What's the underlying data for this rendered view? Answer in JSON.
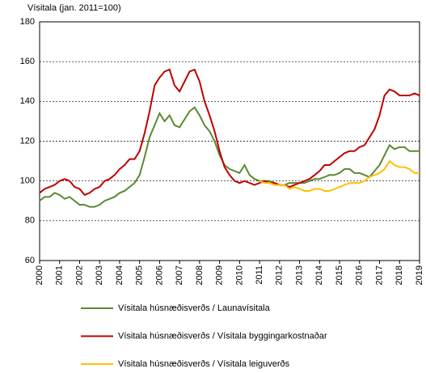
{
  "chart_data": {
    "type": "line",
    "y_label": "Vísitala (jan. 2011=100)",
    "x": [
      2000,
      2000.25,
      2000.5,
      2000.75,
      2001,
      2001.25,
      2001.5,
      2001.75,
      2002,
      2002.25,
      2002.5,
      2002.75,
      2003,
      2003.25,
      2003.5,
      2003.75,
      2004,
      2004.25,
      2004.5,
      2004.75,
      2005,
      2005.25,
      2005.5,
      2005.75,
      2006,
      2006.25,
      2006.5,
      2006.75,
      2007,
      2007.25,
      2007.5,
      2007.75,
      2008,
      2008.25,
      2008.5,
      2008.75,
      2009,
      2009.25,
      2009.5,
      2009.75,
      2010,
      2010.25,
      2010.5,
      2010.75,
      2011,
      2011.25,
      2011.5,
      2011.75,
      2012,
      2012.25,
      2012.5,
      2012.75,
      2013,
      2013.25,
      2013.5,
      2013.75,
      2014,
      2014.25,
      2014.5,
      2014.75,
      2015,
      2015.25,
      2015.5,
      2015.75,
      2016,
      2016.25,
      2016.5,
      2016.75,
      2017,
      2017.25,
      2017.5,
      2017.75,
      2018,
      2018.25,
      2018.5,
      2018.75,
      2019
    ],
    "series": [
      {
        "name": "Vísitala húsnæðisverðs / Launavísitala",
        "color": "#5a8a32",
        "values": [
          90,
          92,
          92,
          94,
          93,
          91,
          92,
          90,
          88,
          88,
          87,
          87,
          88,
          90,
          91,
          92,
          94,
          95,
          97,
          99,
          103,
          112,
          122,
          128,
          134,
          130,
          133,
          128,
          127,
          131,
          135,
          137,
          133,
          128,
          125,
          120,
          113,
          108,
          106,
          105,
          104,
          108,
          103,
          101,
          100,
          100,
          100,
          99,
          98,
          98,
          99,
          99,
          99,
          99,
          100,
          101,
          101,
          102,
          103,
          103,
          104,
          106,
          106,
          104,
          104,
          103,
          102,
          105,
          108,
          113,
          118,
          116,
          117,
          117,
          115,
          115,
          115
        ]
      },
      {
        "name": "Vísitala húsnæðisverðs / Vísitala byggingarkostnaðar",
        "color": "#c00000",
        "values": [
          94,
          96,
          97,
          98,
          100,
          101,
          100,
          97,
          96,
          93,
          94,
          96,
          97,
          100,
          101,
          103,
          106,
          108,
          111,
          111,
          115,
          124,
          135,
          148,
          152,
          155,
          156,
          148,
          145,
          150,
          155,
          156,
          150,
          140,
          133,
          125,
          115,
          107,
          103,
          100,
          99,
          100,
          99,
          98,
          99,
          100,
          99,
          99,
          98,
          98,
          97,
          98,
          99,
          100,
          101,
          103,
          105,
          108,
          108,
          110,
          112,
          114,
          115,
          115,
          117,
          118,
          122,
          126,
          133,
          143,
          146,
          145,
          143,
          143,
          143,
          144,
          143
        ]
      },
      {
        "name": "Vísitala húsnæðisverðs / Vísitala leiguverðs",
        "color": "#ffc000",
        "values": [
          null,
          null,
          null,
          null,
          null,
          null,
          null,
          null,
          null,
          null,
          null,
          null,
          null,
          null,
          null,
          null,
          null,
          null,
          null,
          null,
          null,
          null,
          null,
          null,
          null,
          null,
          null,
          null,
          null,
          null,
          null,
          null,
          null,
          null,
          null,
          null,
          null,
          null,
          null,
          null,
          null,
          null,
          null,
          null,
          100,
          99,
          99,
          98,
          98,
          98,
          96,
          97,
          96,
          95,
          95,
          96,
          96,
          95,
          95,
          96,
          97,
          98,
          99,
          99,
          99,
          100,
          102,
          103,
          104,
          106,
          110,
          108,
          107,
          107,
          106,
          104,
          104
        ]
      }
    ],
    "xlim": [
      2000,
      2019
    ],
    "xticks": [
      2000,
      2001,
      2002,
      2003,
      2004,
      2005,
      2006,
      2007,
      2008,
      2009,
      2010,
      2011,
      2012,
      2013,
      2014,
      2015,
      2016,
      2017,
      2018,
      2019
    ],
    "ylim": [
      60,
      180
    ],
    "yticks": [
      60,
      80,
      100,
      120,
      140,
      160,
      180
    ],
    "grid": true
  }
}
